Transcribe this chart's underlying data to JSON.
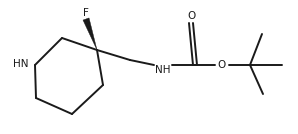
{
  "bg_color": "#ffffff",
  "line_color": "#1a1a1a",
  "line_width": 1.4,
  "font_size": 7.5,
  "label_HN": "HN",
  "label_F": "F",
  "label_NH": "NH",
  "label_O_carbonyl": "O",
  "label_O_ether": "O"
}
